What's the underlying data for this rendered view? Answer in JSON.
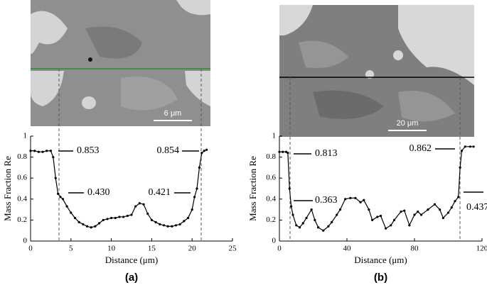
{
  "chart_data": [
    {
      "type": "line",
      "label": "(a)",
      "scale_bar": "6 μm",
      "xlabel": "Distance (μm)",
      "ylabel": "Mass Fraction Re",
      "xlim": [
        0,
        25
      ],
      "xticks": [
        0,
        5,
        10,
        15,
        20,
        25
      ],
      "ylim": [
        0,
        1
      ],
      "yticks": [
        0,
        0.2,
        0.4,
        0.6,
        0.8,
        1
      ],
      "annotations": [
        "0.853",
        "0.430",
        "0.421",
        "0.854"
      ],
      "x": [
        0,
        0.5,
        1,
        1.5,
        2,
        2.5,
        2.8,
        3.1,
        3.4,
        3.7,
        4,
        4.5,
        5,
        5.5,
        6,
        6.5,
        7,
        7.5,
        8,
        8.5,
        9,
        9.5,
        10,
        10.5,
        11,
        11.5,
        12,
        12.5,
        13,
        13.5,
        14,
        14.5,
        15,
        15.5,
        16,
        16.5,
        17,
        17.5,
        18,
        18.5,
        19,
        19.5,
        20,
        20.3,
        20.6,
        20.9,
        21.2,
        21.5,
        21.8
      ],
      "series": [
        {
          "color": "#000000",
          "values": [
            0.86,
            0.86,
            0.85,
            0.85,
            0.86,
            0.86,
            0.8,
            0.6,
            0.45,
            0.42,
            0.4,
            0.33,
            0.27,
            0.22,
            0.18,
            0.16,
            0.14,
            0.13,
            0.14,
            0.17,
            0.2,
            0.21,
            0.22,
            0.22,
            0.23,
            0.23,
            0.24,
            0.25,
            0.33,
            0.36,
            0.35,
            0.26,
            0.2,
            0.18,
            0.16,
            0.15,
            0.14,
            0.14,
            0.15,
            0.16,
            0.19,
            0.22,
            0.3,
            0.42,
            0.5,
            0.7,
            0.84,
            0.86,
            0.87
          ]
        }
      ]
    },
    {
      "type": "line",
      "label": "(b)",
      "scale_bar": "20 μm",
      "xlabel": "Distance (μm)",
      "ylabel": "Mass Fraction Re",
      "xlim": [
        0,
        120
      ],
      "xticks": [
        0,
        40,
        80,
        120
      ],
      "ylim": [
        0,
        1
      ],
      "yticks": [
        0,
        0.2,
        0.4,
        0.6,
        0.8,
        1
      ],
      "annotations": [
        "0.813",
        "0.363",
        "0.862",
        "0.437"
      ],
      "x": [
        0,
        2,
        4,
        5,
        6,
        7,
        8,
        10,
        12,
        14,
        16,
        19,
        21,
        23,
        26,
        29,
        31,
        34,
        36,
        39,
        42,
        45,
        48,
        50,
        53,
        55,
        58,
        60,
        63,
        66,
        68,
        72,
        74,
        77,
        80,
        82,
        84,
        88,
        92,
        95,
        97,
        100,
        102,
        104,
        106,
        107,
        108,
        110,
        113,
        115
      ],
      "series": [
        {
          "color": "#000000",
          "values": [
            0.85,
            0.85,
            0.85,
            0.84,
            0.5,
            0.33,
            0.25,
            0.15,
            0.13,
            0.17,
            0.22,
            0.3,
            0.2,
            0.13,
            0.1,
            0.14,
            0.18,
            0.25,
            0.3,
            0.4,
            0.41,
            0.41,
            0.37,
            0.39,
            0.3,
            0.2,
            0.23,
            0.24,
            0.12,
            0.15,
            0.2,
            0.28,
            0.29,
            0.15,
            0.25,
            0.28,
            0.25,
            0.3,
            0.35,
            0.3,
            0.22,
            0.27,
            0.32,
            0.38,
            0.42,
            0.7,
            0.86,
            0.9,
            0.9,
            0.9
          ]
        }
      ]
    }
  ]
}
